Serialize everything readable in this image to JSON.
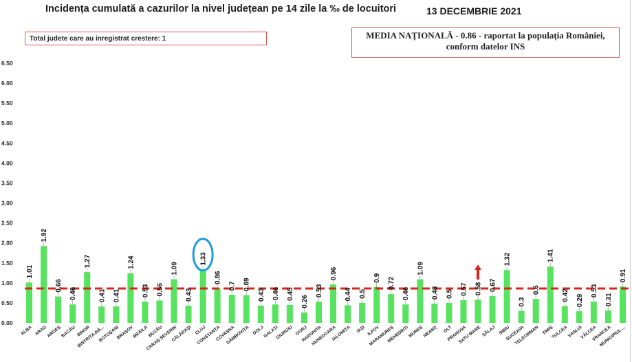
{
  "chart_data": {
    "type": "bar",
    "title": "Incidența cumulată a cazurilor la nivel județean pe 14 zile la ‰ de locuitori",
    "date": "13 DECEMBRIE 2021",
    "info_box": "Total judete care au inregistrat crestere: 1",
    "national_box_line1": "MEDIA NAȚIONALĂ - 0.86 -  raportat la populația României,",
    "national_box_line2": "conform datelor INS",
    "national_average": 0.86,
    "ylim": [
      0,
      6.5
    ],
    "yticks": [
      "0.00",
      "0.50",
      "1.00",
      "1.50",
      "2.00",
      "2.50",
      "3.00",
      "3.50",
      "4.00",
      "4.50",
      "5.00",
      "5.50",
      "6.00",
      "6.50"
    ],
    "categories": [
      "ALBA",
      "ARAD",
      "ARGEȘ",
      "BACĂU",
      "BIHOR",
      "BISTRIȚA-NĂSĂUD",
      "BOTOȘANI",
      "BRAȘOV",
      "BRĂILA",
      "BUZĂU",
      "CARAȘ-SEVERIN",
      "CĂLĂRAȘI",
      "CLUJ",
      "CONSTANȚA",
      "COVASNA",
      "DÂMBOVIȚA",
      "DOLJ",
      "GALAȚI",
      "GIURGIU",
      "GORJ",
      "HARGHITA",
      "HUNEDOARA",
      "IALOMIȚA",
      "IAȘI",
      "ILFOV",
      "MARAMUREȘ",
      "MEHEDINȚI",
      "MUREȘ",
      "NEAMȚ",
      "OLT",
      "PRAHOVA",
      "SATU MARE",
      "SĂLAJ",
      "SIBIU",
      "SUCEAVA",
      "TELEORMAN",
      "TIMIȘ",
      "TULCEA",
      "VASLUI",
      "VÂLCEA",
      "VRANCEA",
      "MUNICIPIUL BUCUREȘTI"
    ],
    "values": [
      1.01,
      1.92,
      0.66,
      0.46,
      1.27,
      0.41,
      0.41,
      1.24,
      0.53,
      0.56,
      1.09,
      0.43,
      1.33,
      0.86,
      0.7,
      0.69,
      0.43,
      0.46,
      0.45,
      0.26,
      0.53,
      0.96,
      0.44,
      0.5,
      0.9,
      0.72,
      0.46,
      1.09,
      0.48,
      0.5,
      0.57,
      0.58,
      0.67,
      1.32,
      0.3,
      0.6,
      1.41,
      0.42,
      0.29,
      0.53,
      0.31,
      0.91
    ],
    "value_labels": [
      "1.01",
      "1.92",
      "0.66",
      "0.46",
      "1.27",
      "0.41",
      "0.41",
      "1.24",
      "0.53",
      "0.56",
      "1.09",
      "0.43",
      "1.33",
      "0.86",
      "0.7",
      "0.69",
      "0.43",
      "0.46",
      "0.45",
      "0.26",
      "0.53",
      "0.96",
      "0.44",
      "0.5",
      "0.9",
      "0.72",
      "0.46",
      "1.09",
      "0.48",
      "0.5",
      "0.57",
      "0.58",
      "0.67",
      "1.32",
      "0.3",
      "0.6",
      "1.41",
      "0.42",
      "0.29",
      "0.53",
      "0.31",
      "0.91"
    ],
    "highlighted_category": "CLUJ",
    "increase_arrow_category": "SATU MARE",
    "colors": {
      "bar": "#57e35f",
      "average_line": "#d9261c",
      "highlight_ring": "#1f9be0",
      "arrow": "#d9261c",
      "box_border": "#d9534f"
    }
  }
}
